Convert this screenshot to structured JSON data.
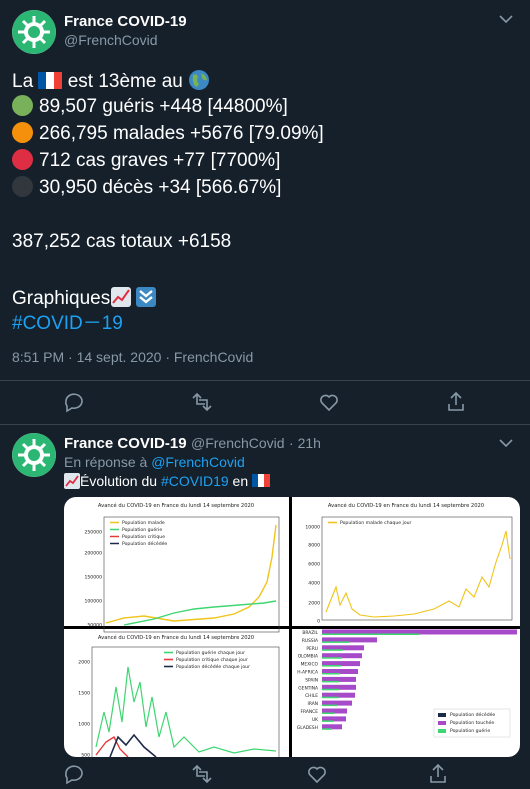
{
  "tweets": [
    {
      "name": "France COVID-19",
      "handle": "@FrenchCovid",
      "text": {
        "intro_a": "La",
        "intro_b": "est 13ème au",
        "stats": [
          "89,507 guéris +448 [44800%]",
          "266,795 malades +5676 [79.09%]",
          "712 cas graves +77 [7700%]",
          "30,950 décès +34 [566.67%]"
        ],
        "total": "387,252 cas totaux +6158",
        "graphs": "Graphiques",
        "hashtag": "#COVID－19"
      },
      "timestamp": "8:51 PM · 14 sept. 2020 · FrenchCovid"
    },
    {
      "name": "France COVID-19",
      "handle": "@FrenchCovid",
      "age": "· 21h",
      "reply_label": "En réponse à",
      "reply_to": "@FrenchCovid",
      "text_a": "Évolution du",
      "hashtag": "#COVID19",
      "text_b": "en",
      "image": {
        "panels": [
          {
            "title": "Avancé du COVID-19 en France du lundi 14 septembre 2020",
            "legend": [
              "Population malade",
              "Population guérie",
              "Population critique",
              "Population décédée"
            ],
            "yticks": [
              "250000",
              "200000",
              "150000",
              "100000",
              "50000"
            ]
          },
          {
            "title": "Avancé du COVID-19 en France du lundi 14 septembre 2020",
            "legend": [
              "Population malade chaque jour"
            ],
            "yticks": [
              "10000",
              "8000",
              "6000",
              "4000",
              "2000",
              "0"
            ]
          },
          {
            "title": "Avancé du COVID-19 en France du lundi 14 septembre 2020",
            "legend": [
              "Population guérie chaque jour",
              "Population critique chaque jour",
              "Population décédée chaque jour"
            ],
            "yticks": [
              "2000",
              "1500",
              "1000",
              "500"
            ]
          },
          {
            "countries": [
              "BRAZIL",
              "RUSSIA",
              "PERU",
              "OLOMBIA",
              "MEXICO",
              "H-AFRICA",
              "SPAIN",
              "GENTINA",
              "CHILE",
              "IRAN",
              "FRANCE",
              "UK",
              "GLADESH"
            ],
            "legend": [
              "Population décédée",
              "Population touchée",
              "Population guérie"
            ]
          }
        ]
      }
    }
  ]
}
